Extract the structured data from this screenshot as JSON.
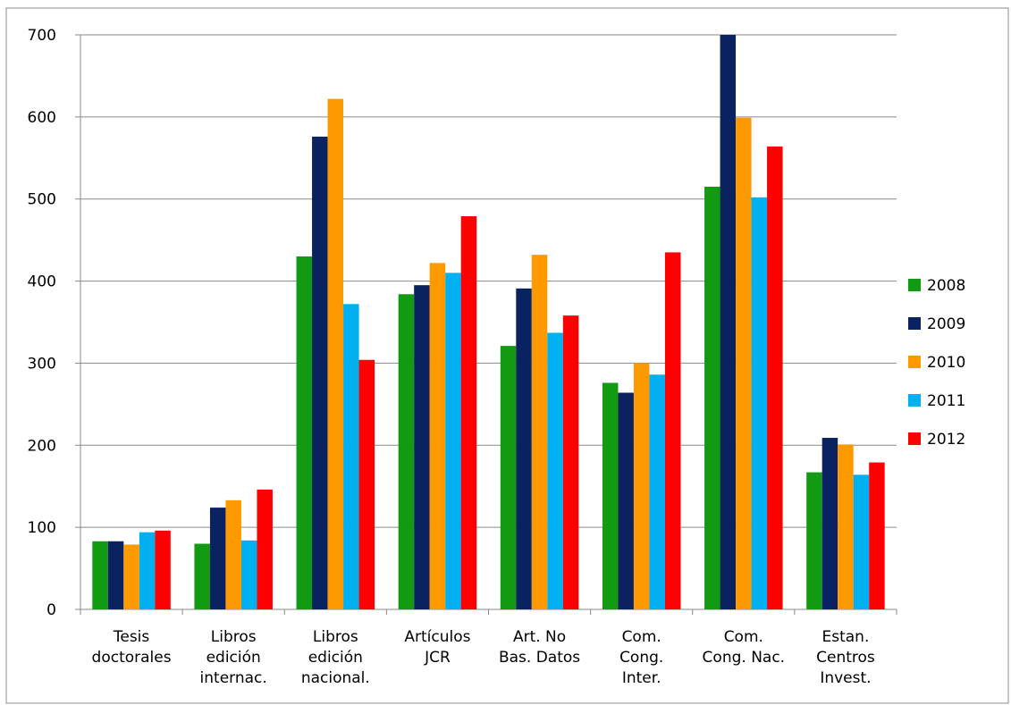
{
  "chart_data": {
    "type": "bar",
    "title": "",
    "xlabel": "",
    "ylabel": "",
    "ylim": [
      0,
      700
    ],
    "yticks": [
      0,
      100,
      200,
      300,
      400,
      500,
      600,
      700
    ],
    "grid": true,
    "legend_position": "right",
    "categories": [
      [
        "Tesis",
        "doctorales"
      ],
      [
        "Libros",
        "edición",
        "internac."
      ],
      [
        "Libros",
        "edición",
        "nacional."
      ],
      [
        "Artículos",
        "JCR"
      ],
      [
        "Art. No",
        "Bas. Datos"
      ],
      [
        "Com.",
        "Cong.",
        "Inter."
      ],
      [
        "Com.",
        "Cong. Nac."
      ],
      [
        "Estan.",
        "Centros",
        "Invest."
      ]
    ],
    "series": [
      {
        "name": "2008",
        "color": "#129A12",
        "values": [
          83,
          80,
          430,
          384,
          321,
          276,
          515,
          167
        ]
      },
      {
        "name": "2009",
        "color": "#0B2260",
        "values": [
          83,
          124,
          576,
          395,
          391,
          264,
          700,
          209
        ]
      },
      {
        "name": "2010",
        "color": "#FF9900",
        "values": [
          79,
          133,
          622,
          422,
          432,
          300,
          599,
          201
        ]
      },
      {
        "name": "2011",
        "color": "#00B0F0",
        "values": [
          94,
          84,
          372,
          410,
          337,
          286,
          502,
          164
        ]
      },
      {
        "name": "2012",
        "color": "#FF0000",
        "values": [
          96,
          146,
          304,
          479,
          358,
          435,
          564,
          179
        ]
      }
    ]
  }
}
